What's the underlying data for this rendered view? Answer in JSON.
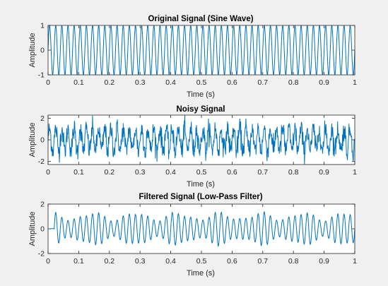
{
  "colors": {
    "background": "#f0f0f0",
    "axes_bg": "#ffffff",
    "line": "#0072bd",
    "axis": "#262626"
  },
  "chart_data": [
    {
      "type": "line",
      "title": "Original Signal (Sine Wave)",
      "xlabel": "Time (s)",
      "ylabel": "Amplitude",
      "xlim": [
        0,
        1
      ],
      "ylim": [
        -1,
        1
      ],
      "xticks": [
        "0",
        "0.1",
        "0.2",
        "0.3",
        "0.4",
        "0.5",
        "0.6",
        "0.7",
        "0.8",
        "0.9",
        "1"
      ],
      "yticks": [
        "-1",
        "0",
        "1"
      ],
      "grid": false,
      "series": [
        {
          "kind": "sine",
          "frequency_hz": 50,
          "amplitude": 1
        }
      ]
    },
    {
      "type": "line",
      "title": "Noisy Signal",
      "xlabel": "Time (s)",
      "ylabel": "Amplitude",
      "xlim": [
        0,
        1
      ],
      "ylim": [
        -2.3,
        2.3
      ],
      "xticks": [
        "0",
        "0.1",
        "0.2",
        "0.3",
        "0.4",
        "0.5",
        "0.6",
        "0.7",
        "0.8",
        "0.9",
        "1"
      ],
      "yticks": [
        "-2",
        "0",
        "2"
      ],
      "grid": false,
      "series": [
        {
          "kind": "sine_plus_noise",
          "frequency_hz": 50,
          "amplitude": 1,
          "noise_std": 0.5
        }
      ]
    },
    {
      "type": "line",
      "title": "Filtered Signal (Low-Pass Filter)",
      "xlabel": "Time (s)",
      "ylabel": "Amplitude",
      "xlim": [
        0,
        1
      ],
      "ylim": [
        -2,
        2
      ],
      "xticks": [
        "0",
        "0.1",
        "0.2",
        "0.3",
        "0.4",
        "0.5",
        "0.6",
        "0.7",
        "0.8",
        "0.9",
        "1"
      ],
      "yticks": [
        "-2",
        "0",
        "2"
      ],
      "grid": false,
      "series": [
        {
          "kind": "lowpass_filtered",
          "frequency_hz": 50,
          "amplitude": 1,
          "start_delay_s": 0.02
        }
      ]
    }
  ]
}
